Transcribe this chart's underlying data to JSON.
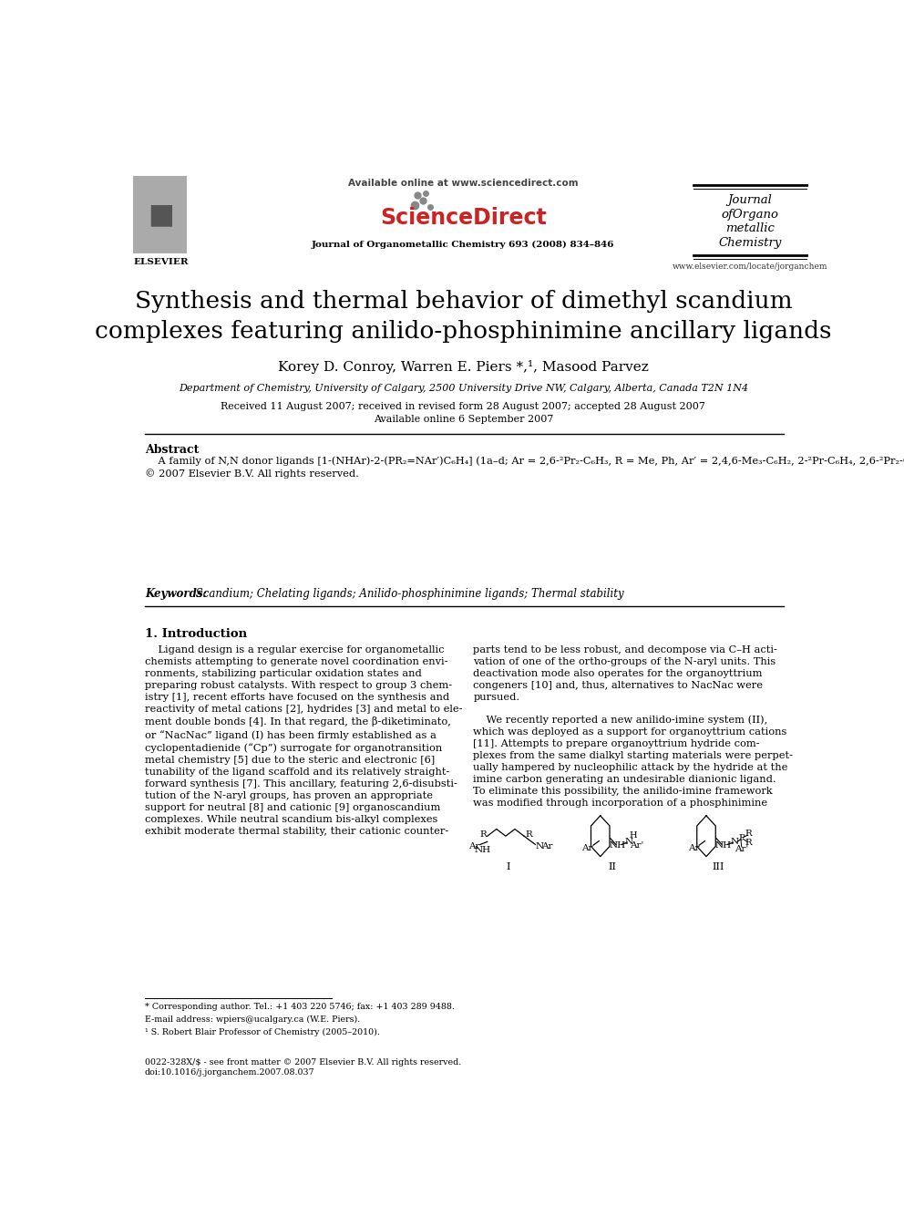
{
  "title_line1": "Synthesis and thermal behavior of dimethyl scandium",
  "title_line2": "complexes featuring anilido-phosphinimine ancillary ligands",
  "authors": "Korey D. Conroy, Warren E. Piers *,¹, Masood Parvez",
  "affiliation": "Department of Chemistry, University of Calgary, 2500 University Drive NW, Calgary, Alberta, Canada T2N 1N4",
  "received": "Received 11 August 2007; received in revised form 28 August 2007; accepted 28 August 2007",
  "available": "Available online 6 September 2007",
  "journal_header": "Journal of Organometallic Chemistry 693 (2008) 834–846",
  "available_online": "Available online at www.sciencedirect.com",
  "elsevier_text": "ELSEVIER",
  "website": "www.elsevier.com/locate/jorganchem",
  "abstract_label": "Abstract",
  "keywords_label": "Keywords:",
  "keywords_text": " Scandium; Chelating ligands; Anilido-phosphinimine ligands; Thermal stability",
  "section1_label": "1. Introduction",
  "footnote1": "* Corresponding author. Tel.: +1 403 220 5746; fax: +1 403 289 9488.",
  "footnote2": "E-mail address: wpiers@ucalgary.ca (W.E. Piers).",
  "footnote3": "¹ S. Robert Blair Professor of Chemistry (2005–2010).",
  "footer_left": "0022-328X/$ - see front matter © 2007 Elsevier B.V. All rights reserved.",
  "footer_doi": "doi:10.1016/j.jorganchem.2007.08.037",
  "bg_color": "#ffffff",
  "text_color": "#000000"
}
